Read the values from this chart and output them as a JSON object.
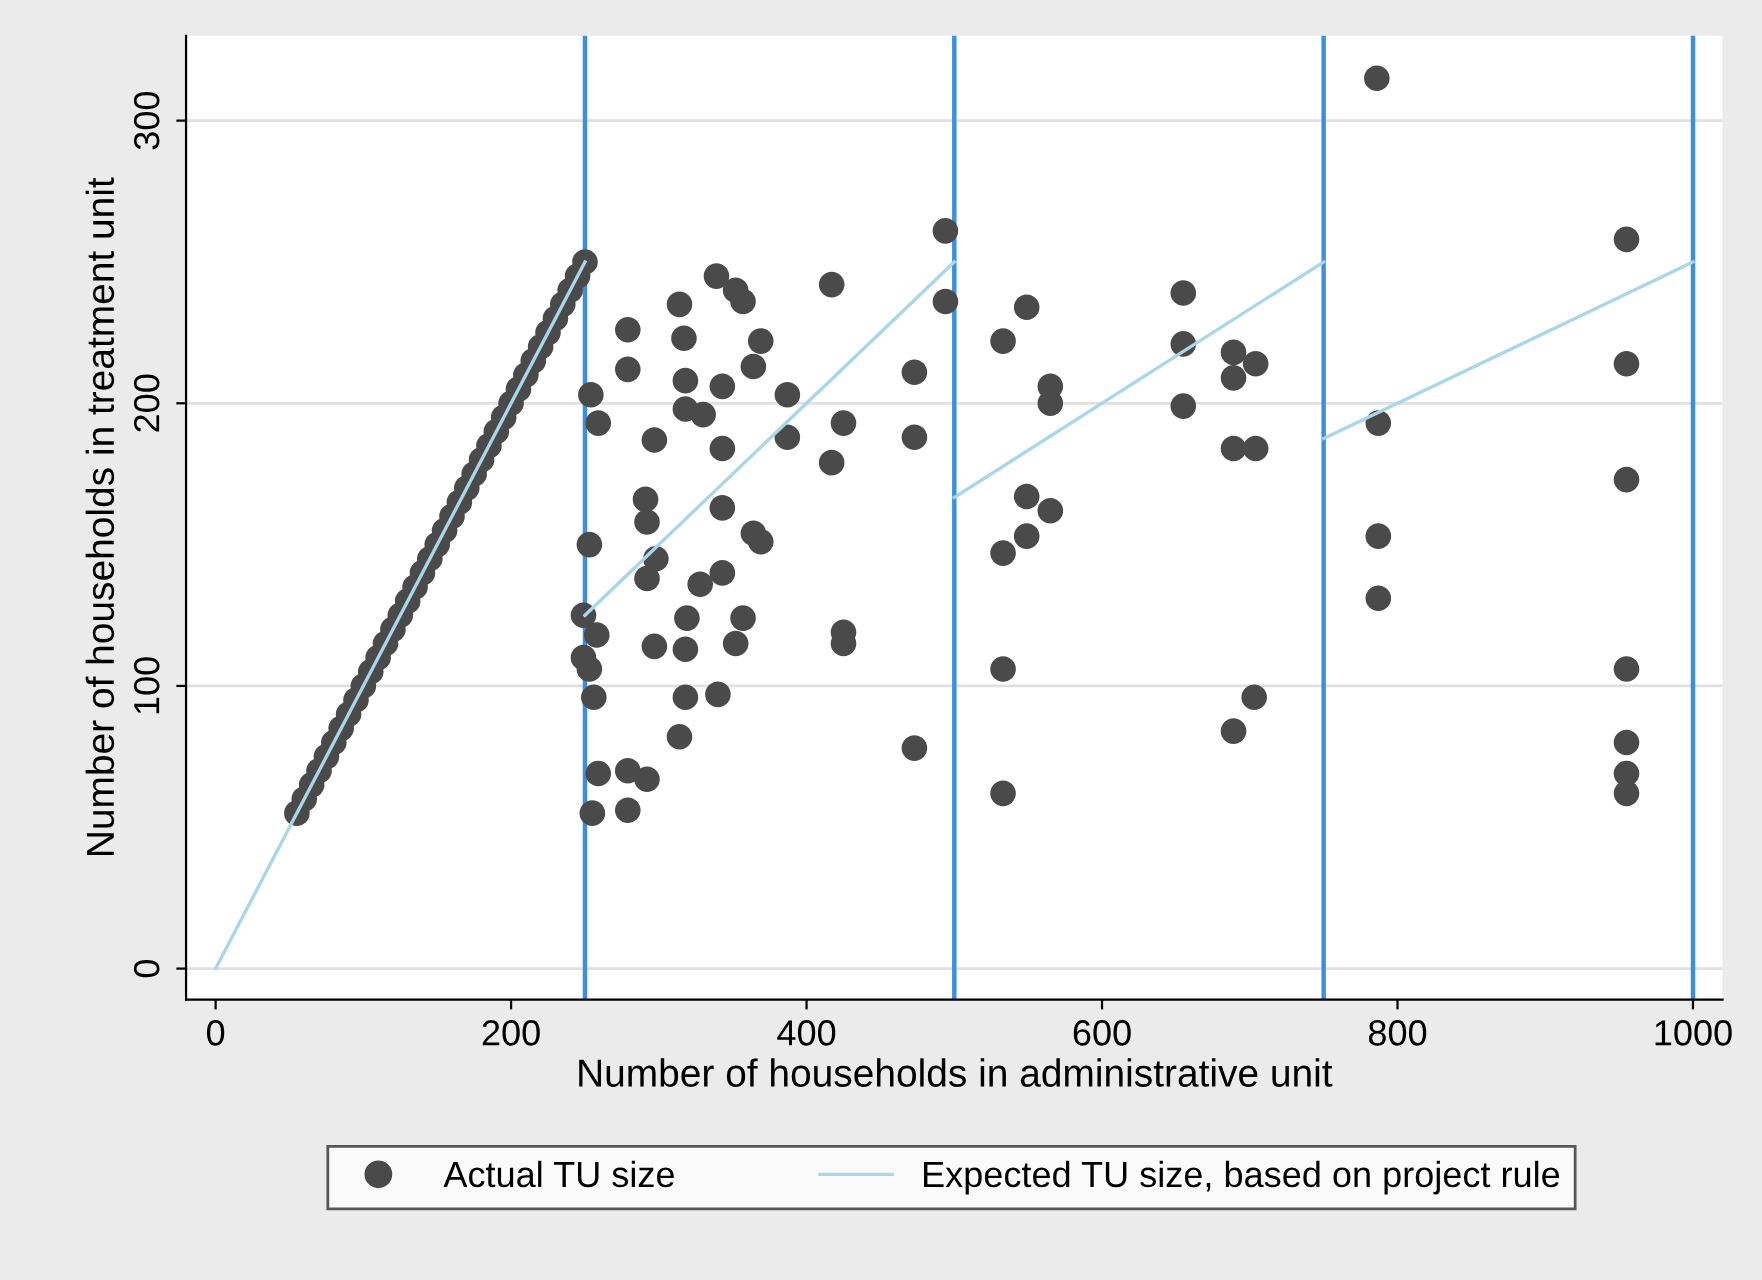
{
  "chart_data": {
    "type": "scatter",
    "xlabel": "Number of households in administrative unit",
    "ylabel": "Number of households in treatment unit",
    "xlim": [
      -20,
      1020
    ],
    "ylim": [
      -11,
      330
    ],
    "xticks": [
      0,
      200,
      400,
      600,
      800,
      1000
    ],
    "yticks": [
      0,
      100,
      200,
      300
    ],
    "grid": "y",
    "legend": "bottom",
    "marker": "circle",
    "series": [
      {
        "name": "Actual TU size",
        "color": "#4a4a4a",
        "x": [
          55,
          60,
          65,
          70,
          75,
          80,
          85,
          90,
          95,
          100,
          105,
          110,
          115,
          120,
          125,
          130,
          135,
          140,
          145,
          150,
          155,
          160,
          165,
          170,
          175,
          180,
          185,
          190,
          195,
          200,
          205,
          210,
          215,
          220,
          225,
          230,
          235,
          240,
          245,
          250,
          494,
          494,
          339,
          352,
          357,
          314,
          417,
          279,
          317,
          279,
          318,
          343,
          369,
          364,
          387,
          254,
          259,
          318,
          330,
          297,
          343,
          387,
          425,
          417,
          473,
          473,
          291,
          292,
          298,
          292,
          343,
          364,
          369,
          343,
          328,
          253,
          249,
          258,
          249,
          253,
          256,
          297,
          318,
          352,
          357,
          319,
          425,
          425,
          318,
          340,
          314,
          473,
          259,
          279,
          292,
          255,
          279,
          549,
          533,
          565,
          565,
          655,
          655,
          655,
          689,
          704,
          689,
          689,
          704,
          549,
          565,
          549,
          533,
          533,
          703,
          689,
          533,
          787,
          787,
          787,
          786,
          955,
          955,
          955,
          955,
          955,
          955,
          955
        ],
        "values": [
          55,
          60,
          65,
          70,
          75,
          80,
          85,
          90,
          95,
          100,
          105,
          110,
          115,
          120,
          125,
          130,
          135,
          140,
          145,
          150,
          155,
          160,
          165,
          170,
          175,
          180,
          185,
          190,
          195,
          200,
          205,
          210,
          215,
          220,
          225,
          230,
          235,
          240,
          245,
          250,
          261,
          236,
          245,
          240,
          236,
          235,
          242,
          226,
          223,
          212,
          208,
          206,
          222,
          213,
          203,
          203,
          193,
          198,
          196,
          187,
          184,
          188,
          193,
          179,
          211,
          188,
          166,
          158,
          145,
          138,
          163,
          154,
          151,
          140,
          136,
          150,
          125,
          118,
          110,
          106,
          96,
          114,
          113,
          115,
          124,
          124,
          119,
          115,
          96,
          97,
          82,
          78,
          69,
          70,
          67,
          55,
          56,
          234,
          222,
          206,
          200,
          239,
          221,
          199,
          218,
          214,
          209,
          184,
          184,
          167,
          162,
          153,
          147,
          106,
          96,
          84,
          62,
          193,
          153,
          131,
          315,
          258,
          214,
          173,
          106,
          80,
          69,
          62
        ]
      },
      {
        "name": "Expected TU size, based on project rule",
        "type": "line",
        "color": "#a9d6e8",
        "marker": "none",
        "x": [
          0,
          250
        ],
        "values": [
          0,
          250
        ]
      },
      {
        "type": "line",
        "color": "#a9d6e8",
        "marker": "none",
        "x": [
          250,
          500
        ],
        "values": [
          125,
          250
        ]
      },
      {
        "type": "line",
        "color": "#a9d6e8",
        "marker": "none",
        "x": [
          500,
          750
        ],
        "values": [
          166.7,
          250
        ]
      },
      {
        "type": "line",
        "color": "#a9d6e8",
        "marker": "none",
        "x": [
          750,
          1000
        ],
        "values": [
          187.5,
          250
        ]
      }
    ],
    "ref_lines": [
      {
        "axis": "x",
        "value": 250,
        "color": "#3b8fe3"
      },
      {
        "axis": "x",
        "value": 500,
        "color": "#3b8fe3"
      },
      {
        "axis": "x",
        "value": 750,
        "color": "#3b8fe3"
      },
      {
        "axis": "x",
        "value": 1000,
        "color": "#3b8fe3"
      }
    ]
  }
}
